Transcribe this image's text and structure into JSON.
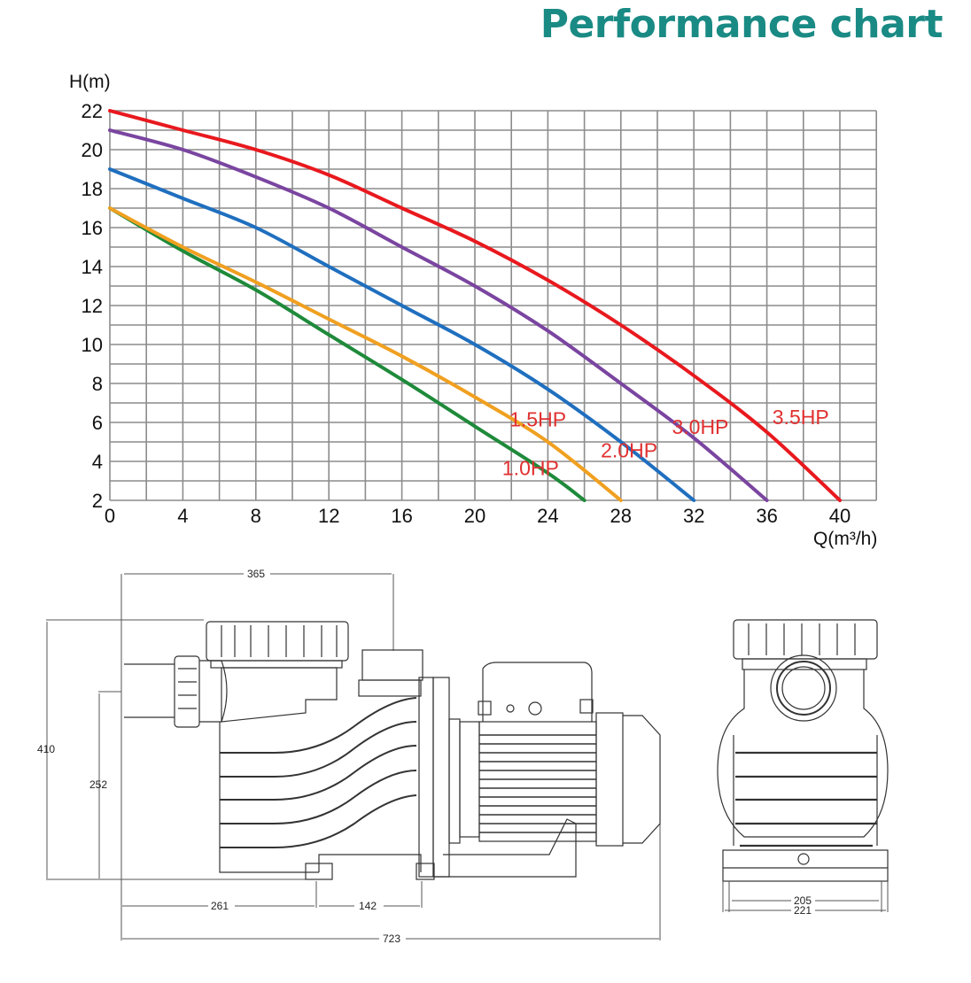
{
  "title": "Performance chart",
  "chart_data": {
    "type": "line",
    "title": "Performance chart",
    "xlabel": "Q(m³/h)",
    "ylabel": "H(m)",
    "xlim": [
      0,
      42
    ],
    "ylim": [
      2,
      22
    ],
    "grid": true,
    "x_ticks": [
      0,
      4,
      8,
      12,
      16,
      20,
      24,
      28,
      32,
      36,
      40
    ],
    "y_ticks": [
      2,
      4,
      6,
      8,
      10,
      12,
      14,
      16,
      18,
      20,
      22
    ],
    "legend_position": "inline labels near curve ends",
    "series": [
      {
        "name": "1.0HP",
        "color": "#1e8a3a",
        "label_pos": [
          21.5,
          3.3
        ],
        "x": [
          0,
          4,
          8,
          12,
          16,
          20,
          24,
          26
        ],
        "y": [
          17,
          14.8,
          12.8,
          10.5,
          8.2,
          5.8,
          3.4,
          2
        ]
      },
      {
        "name": "1.5HP",
        "color": "#f0a020",
        "label_pos": [
          21.9,
          5.8
        ],
        "x": [
          0,
          4,
          8,
          12,
          16,
          20,
          24,
          28
        ],
        "y": [
          17,
          15.0,
          13.2,
          11.3,
          9.4,
          7.3,
          5.0,
          2
        ]
      },
      {
        "name": "2.0HP",
        "color": "#1f6fbf",
        "label_pos": [
          26.9,
          4.2
        ],
        "x": [
          0,
          4,
          8,
          12,
          16,
          20,
          24,
          28,
          32
        ],
        "y": [
          19,
          17.5,
          16.0,
          14.0,
          12.0,
          10.0,
          7.7,
          5.0,
          2
        ]
      },
      {
        "name": "3.0HP",
        "color": "#7a45a0",
        "label_pos": [
          30.8,
          5.4
        ],
        "x": [
          0,
          4,
          8,
          12,
          16,
          20,
          24,
          28,
          32,
          36
        ],
        "y": [
          21,
          20.0,
          18.6,
          17.0,
          15.0,
          13.0,
          10.7,
          8.0,
          5.2,
          2
        ]
      },
      {
        "name": "3.5HP",
        "color": "#e8191e",
        "label_pos": [
          36.3,
          5.9
        ],
        "x": [
          0,
          4,
          8,
          12,
          16,
          20,
          24,
          28,
          32,
          36,
          40
        ],
        "y": [
          22,
          21.0,
          20.0,
          18.7,
          17.0,
          15.3,
          13.3,
          11.0,
          8.4,
          5.5,
          2
        ]
      }
    ]
  },
  "drawing": {
    "side_view": {
      "dims": {
        "top_width": "365",
        "height_total": "410",
        "height_inlet": "252",
        "base_front": "261",
        "base_mid": "142",
        "overall_length": "723"
      }
    },
    "end_view": {
      "dims": {
        "base_inner": "205",
        "base_outer": "221"
      }
    }
  },
  "colors": {
    "title": "#1a8a84",
    "label": "#e03030",
    "grid": "#8c8c8c"
  }
}
